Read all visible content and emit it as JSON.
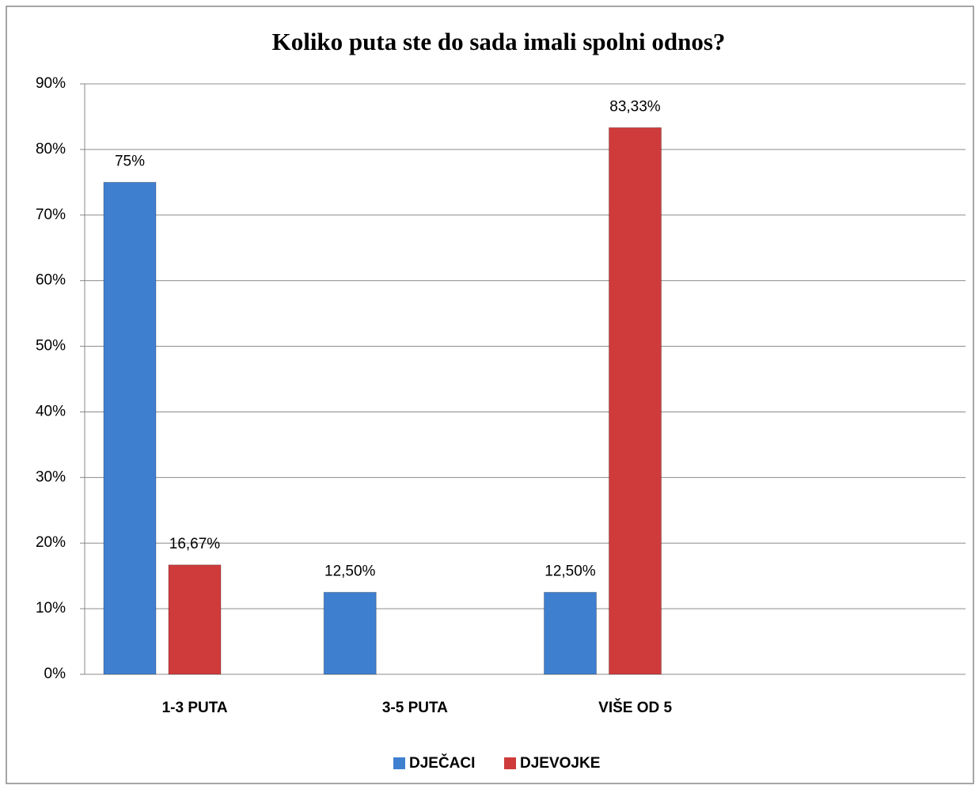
{
  "chart_data": {
    "type": "bar",
    "title": "Koliko puta ste do sada imali spolni odnos?",
    "categories": [
      "1-3 PUTA",
      "3-5 PUTA",
      "VIŠE OD 5",
      null
    ],
    "series": [
      {
        "name": "DJEČACI",
        "color": "#3f7fd0",
        "values": [
          75,
          12.5,
          12.5,
          null
        ],
        "value_labels": [
          "75%",
          "12,50%",
          "12,50%",
          null
        ]
      },
      {
        "name": "DJEVOJKE",
        "color": "#cf3b3b",
        "values": [
          16.67,
          null,
          83.33,
          null
        ],
        "value_labels": [
          "16,67%",
          null,
          "83,33%",
          null
        ]
      }
    ],
    "ylim": [
      0,
      90
    ],
    "yticks": [
      {
        "value": 0,
        "label": "0%"
      },
      {
        "value": 10,
        "label": "10%"
      },
      {
        "value": 20,
        "label": "20%"
      },
      {
        "value": 30,
        "label": "30%"
      },
      {
        "value": 40,
        "label": "40%"
      },
      {
        "value": 50,
        "label": "50%"
      },
      {
        "value": 60,
        "label": "60%"
      },
      {
        "value": 70,
        "label": "70%"
      },
      {
        "value": 80,
        "label": "80%"
      },
      {
        "value": 90,
        "label": "90%"
      }
    ],
    "grid": true,
    "legend": "bottom"
  }
}
